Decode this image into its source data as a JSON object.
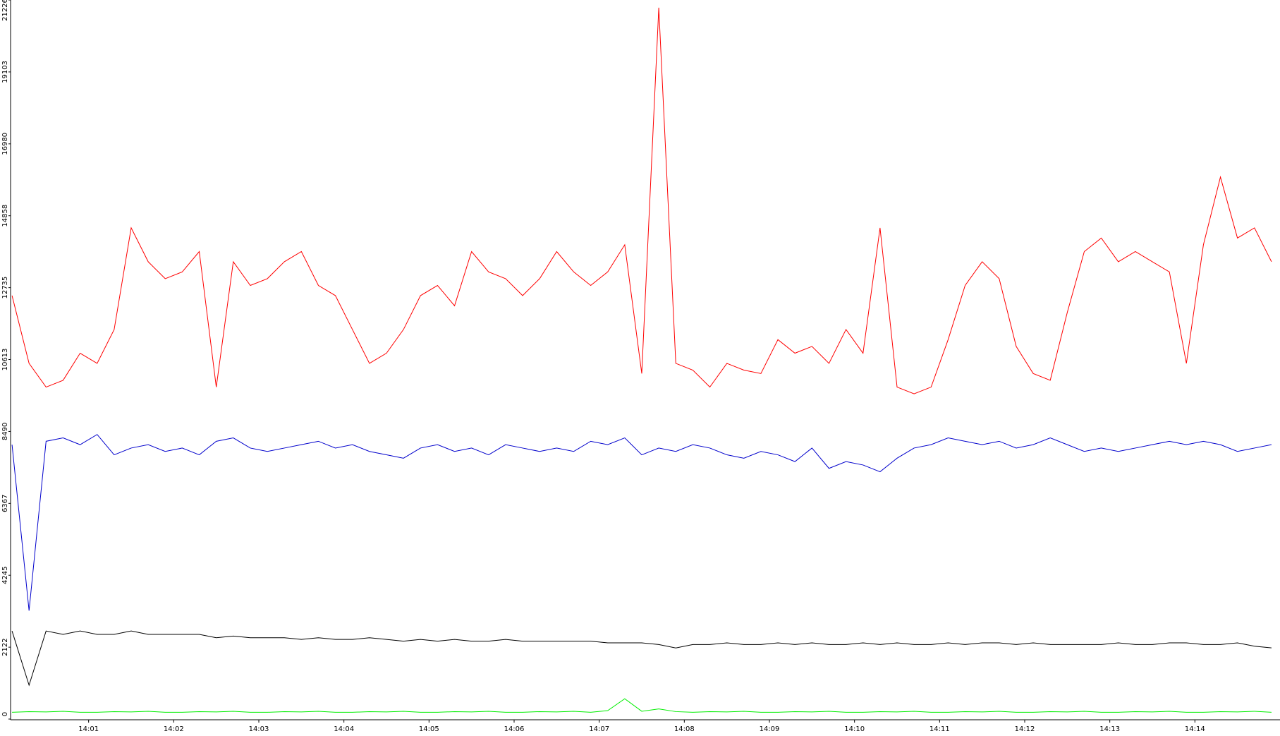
{
  "chart_data": {
    "type": "line",
    "x": [
      0.1,
      0.3,
      0.5,
      0.7,
      0.9,
      1.1,
      1.3,
      1.5,
      1.7,
      1.9,
      2.1,
      2.3,
      2.5,
      2.7,
      2.9,
      3.1,
      3.3,
      3.5,
      3.7,
      3.9,
      4.1,
      4.3,
      4.5,
      4.7,
      4.9,
      5.1,
      5.3,
      5.5,
      5.7,
      5.9,
      6.1,
      6.3,
      6.5,
      6.7,
      6.9,
      7.1,
      7.3,
      7.5,
      7.7,
      7.9,
      8.1,
      8.3,
      8.5,
      8.7,
      8.9,
      9.1,
      9.3,
      9.5,
      9.7,
      9.9,
      10.1,
      10.3,
      10.5,
      10.7,
      10.9,
      11.1,
      11.3,
      11.5,
      11.7,
      11.9,
      12.1,
      12.3,
      12.5,
      12.7,
      12.9,
      13.1,
      13.3,
      13.5,
      13.7,
      13.9,
      14.1,
      14.3,
      14.5,
      14.7,
      14.9
    ],
    "series": [
      {
        "color": "#ff0000",
        "values": [
          12500,
          10500,
          9800,
          10000,
          10800,
          10500,
          11500,
          14500,
          13500,
          13000,
          13200,
          13800,
          9800,
          13500,
          12800,
          13000,
          13500,
          13800,
          12800,
          12500,
          11500,
          10500,
          10800,
          11500,
          12500,
          12800,
          12200,
          13800,
          13200,
          13000,
          12500,
          13000,
          13800,
          13200,
          12800,
          13200,
          14000,
          10200,
          21000,
          10500,
          10300,
          9800,
          10500,
          10300,
          10200,
          11200,
          10800,
          11000,
          10500,
          11500,
          10800,
          14500,
          9800,
          9600,
          9800,
          11200,
          12800,
          13500,
          13000,
          11000,
          10200,
          10000,
          12000,
          13800,
          14200,
          13500,
          13800,
          13500,
          13200,
          10500,
          14000,
          16000,
          14200,
          14500,
          13500
        ]
      },
      {
        "color": "#0000cc",
        "values": [
          8100,
          3200,
          8200,
          8300,
          8100,
          8400,
          7800,
          8000,
          8100,
          7900,
          8000,
          7800,
          8200,
          8300,
          8000,
          7900,
          8000,
          8100,
          8200,
          8000,
          8100,
          7900,
          7800,
          7700,
          8000,
          8100,
          7900,
          8000,
          7800,
          8100,
          8000,
          7900,
          8000,
          7900,
          8200,
          8100,
          8300,
          7800,
          8000,
          7900,
          8100,
          8000,
          7800,
          7700,
          7900,
          7800,
          7600,
          8000,
          7400,
          7600,
          7500,
          7300,
          7700,
          8000,
          8100,
          8300,
          8200,
          8100,
          8200,
          8000,
          8100,
          8300,
          8100,
          7900,
          8000,
          7900,
          8000,
          8100,
          8200,
          8100,
          8200,
          8100,
          7900,
          8000,
          8100
        ]
      },
      {
        "color": "#000000",
        "values": [
          2600,
          1000,
          2600,
          2500,
          2600,
          2500,
          2500,
          2600,
          2500,
          2500,
          2500,
          2500,
          2400,
          2450,
          2400,
          2400,
          2400,
          2350,
          2400,
          2350,
          2350,
          2400,
          2350,
          2300,
          2350,
          2300,
          2350,
          2300,
          2300,
          2350,
          2300,
          2300,
          2300,
          2300,
          2300,
          2250,
          2250,
          2250,
          2200,
          2100,
          2200,
          2200,
          2250,
          2200,
          2200,
          2250,
          2200,
          2250,
          2200,
          2200,
          2250,
          2200,
          2250,
          2200,
          2200,
          2250,
          2200,
          2250,
          2250,
          2200,
          2250,
          2200,
          2200,
          2200,
          2200,
          2250,
          2200,
          2200,
          2250,
          2250,
          2200,
          2200,
          2250,
          2150,
          2100
        ]
      },
      {
        "color": "#00ee00",
        "values": [
          200,
          220,
          210,
          230,
          200,
          200,
          220,
          210,
          230,
          200,
          200,
          220,
          210,
          230,
          200,
          200,
          220,
          210,
          230,
          200,
          200,
          220,
          210,
          230,
          200,
          200,
          220,
          210,
          230,
          200,
          200,
          220,
          210,
          230,
          200,
          250,
          600,
          230,
          300,
          220,
          200,
          220,
          210,
          230,
          200,
          200,
          220,
          210,
          230,
          200,
          200,
          220,
          210,
          230,
          200,
          200,
          220,
          210,
          230,
          200,
          200,
          220,
          210,
          230,
          200,
          200,
          220,
          210,
          230,
          200,
          200,
          220,
          210,
          230,
          200
        ]
      }
    ],
    "xlim": [
      0,
      15
    ],
    "xticks": [
      {
        "value": 1,
        "label": "14:01"
      },
      {
        "value": 2,
        "label": "14:02"
      },
      {
        "value": 3,
        "label": "14:03"
      },
      {
        "value": 4,
        "label": "14:04"
      },
      {
        "value": 5,
        "label": "14:05"
      },
      {
        "value": 6,
        "label": "14:06"
      },
      {
        "value": 7,
        "label": "14:07"
      },
      {
        "value": 8,
        "label": "14:08"
      },
      {
        "value": 9,
        "label": "14:09"
      },
      {
        "value": 10,
        "label": "14:10"
      },
      {
        "value": 11,
        "label": "14:11"
      },
      {
        "value": 12,
        "label": "14:12"
      },
      {
        "value": 13,
        "label": "14:13"
      },
      {
        "value": 14,
        "label": "14:14"
      }
    ],
    "ylim": [
      0,
      21226
    ],
    "yticks": [
      0,
      2122,
      4245,
      6367,
      8490,
      10613,
      12735,
      14858,
      16980,
      19103,
      21226
    ]
  }
}
